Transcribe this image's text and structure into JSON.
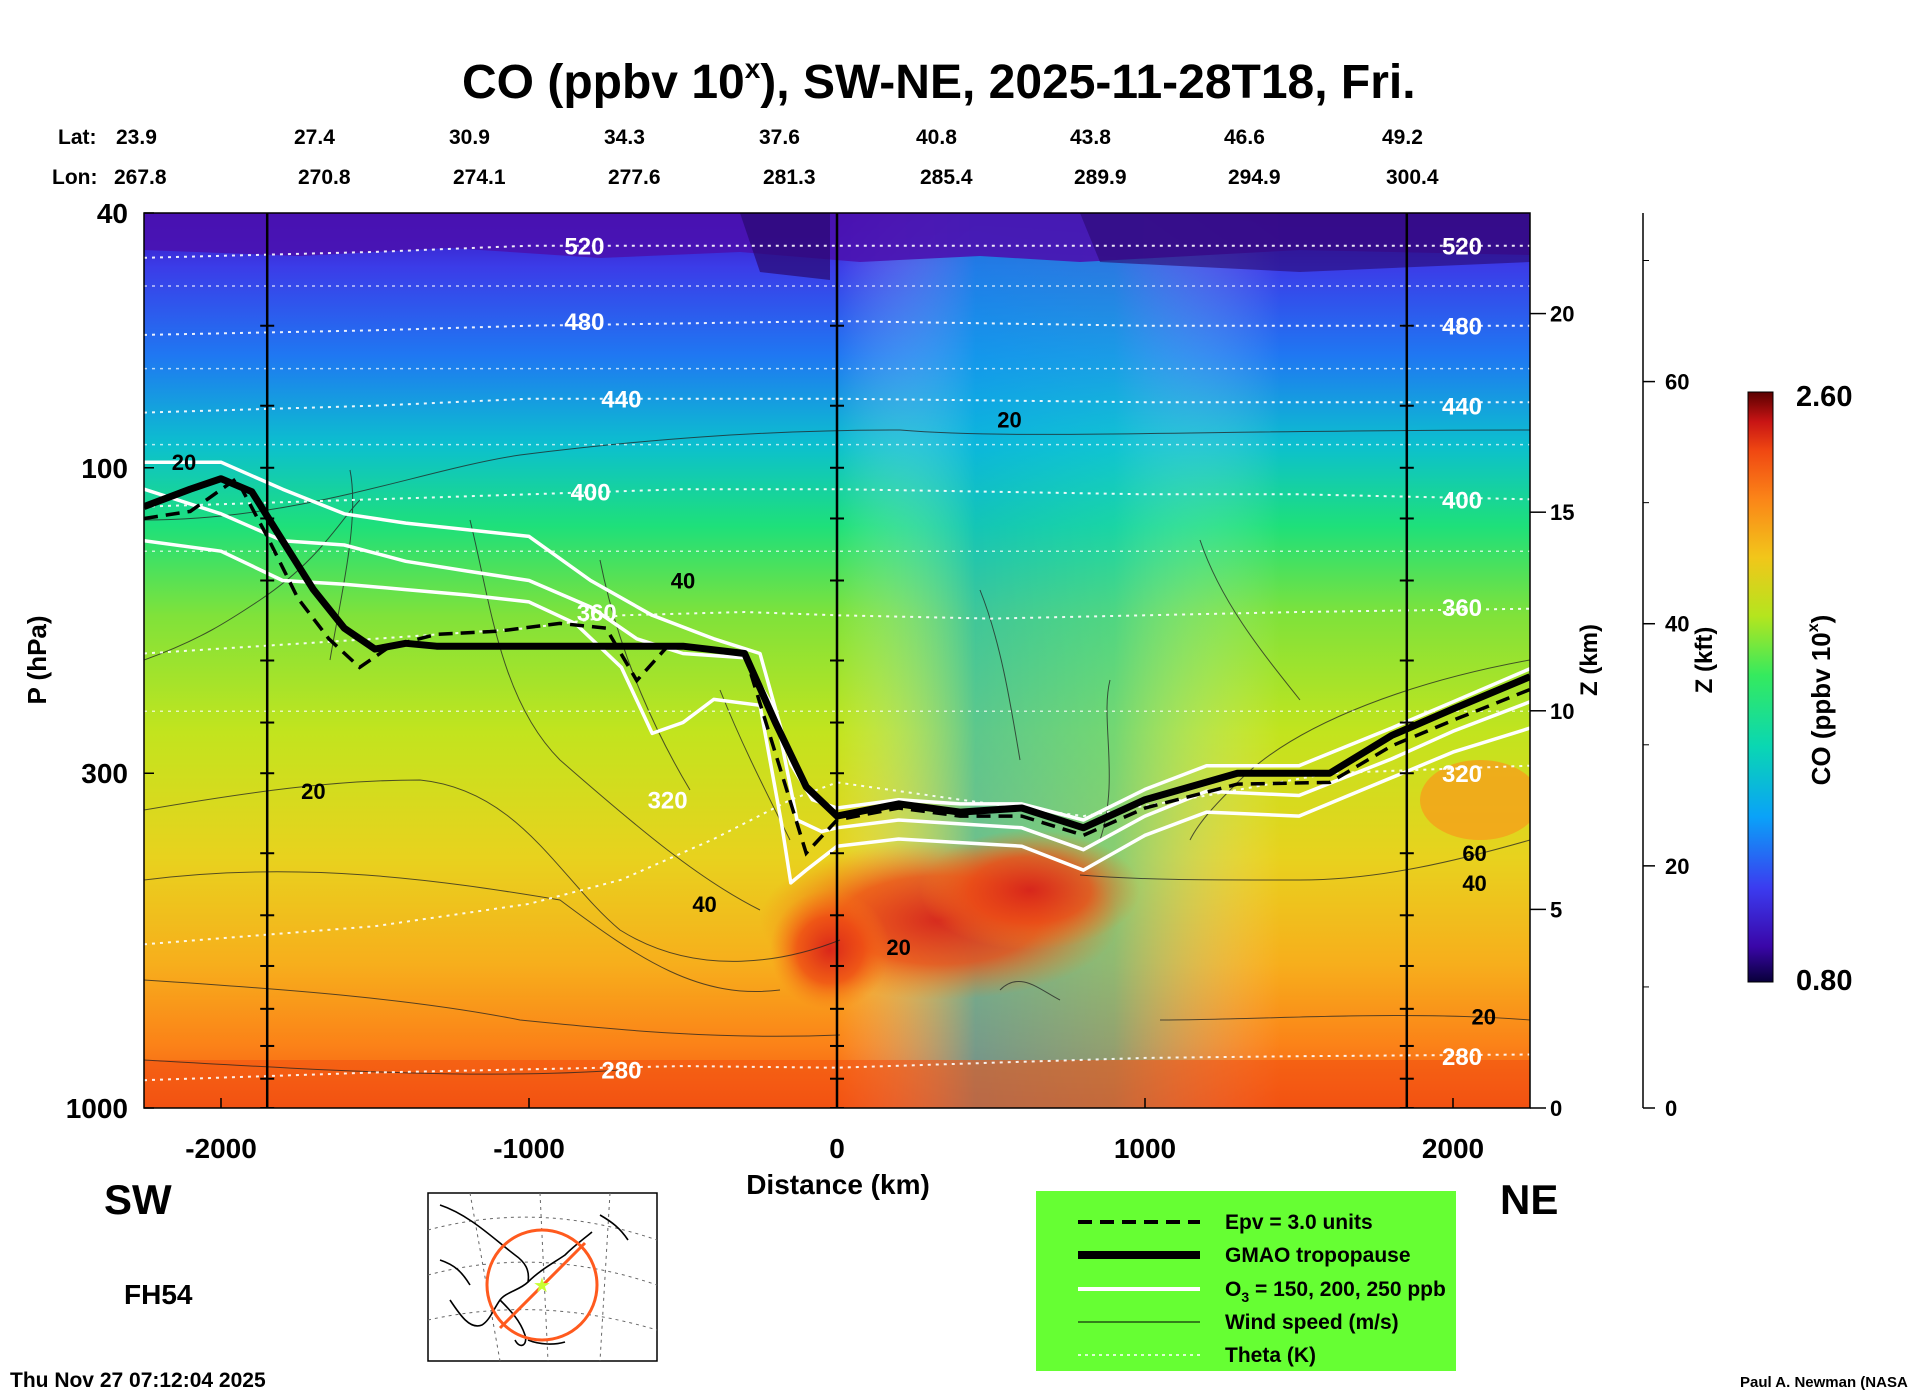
{
  "title": {
    "main": "CO (ppbv 10",
    "sup": "x",
    "rest": "), SW-NE, 2025-11-28T18, Fri."
  },
  "coords": {
    "lat_label": "Lat:",
    "lon_label": "Lon:",
    "lat": [
      "23.9",
      "27.4",
      "30.9",
      "34.3",
      "37.6",
      "40.8",
      "43.8",
      "46.6",
      "49.2"
    ],
    "lon": [
      "267.8",
      "270.8",
      "274.1",
      "277.6",
      "281.3",
      "285.4",
      "289.9",
      "294.9",
      "300.4"
    ]
  },
  "labels": {
    "sw": "SW",
    "ne": "NE",
    "fh": "FH54",
    "timestamp": "Thu Nov 27 07:12:04 2025",
    "credit": "Paul A. Newman (NASA"
  },
  "colors": {
    "legend_bg": "#66ff33",
    "map_orange": "#ff5a1e",
    "map_star": "#c8ff33"
  },
  "legend": [
    {
      "style": "dashed",
      "label": "Epv = 3.0 units"
    },
    {
      "style": "thick",
      "label": "GMAO tropopause"
    },
    {
      "style": "white",
      "label": "O",
      "sub": "3",
      "rest": " = 150, 200, 250 ppb"
    },
    {
      "style": "thin",
      "label": "Wind speed (m/s)"
    },
    {
      "style": "dotted",
      "label": "Theta (K)"
    }
  ],
  "chart_data": {
    "type": "heatmap",
    "title": "CO (ppbv 10^x), SW-NE, 2025-11-28T18, Fri.",
    "xlabel": "Distance (km)",
    "ylabel": "P (hPa)",
    "z_km_label": "Z (km)",
    "z_kft_label": "Z (kft)",
    "colorbar_label": "CO (ppbv 10",
    "colorbar_label_sup": "x",
    "colorbar_label_end": ")",
    "colorbar_range": [
      0.8,
      2.6
    ],
    "colorbar_tick_labels": [
      "2.60",
      "0.80"
    ],
    "xlim": [
      -2250,
      2250
    ],
    "ylim_hpa": [
      1000,
      40
    ],
    "x_ticks": [
      {
        "v": -2000,
        "label": "-2000"
      },
      {
        "v": -1000,
        "label": "-1000"
      },
      {
        "v": 0,
        "label": "0"
      },
      {
        "v": 1000,
        "label": "1000"
      },
      {
        "v": 2000,
        "label": "2000"
      }
    ],
    "y_ticks": [
      {
        "p": 40,
        "label": "40"
      },
      {
        "p": 100,
        "label": "100"
      },
      {
        "p": 300,
        "label": "300"
      },
      {
        "p": 1000,
        "label": "1000"
      }
    ],
    "z_km_ticks": [
      {
        "z": 0,
        "label": "0"
      },
      {
        "z": 5,
        "label": "5"
      },
      {
        "z": 10,
        "label": "10"
      },
      {
        "z": 15,
        "label": "15"
      },
      {
        "z": 20,
        "label": "20"
      }
    ],
    "z_kft_ticks": [
      {
        "z": 0,
        "label": "0"
      },
      {
        "z": 20,
        "label": "20"
      },
      {
        "z": 40,
        "label": "40"
      },
      {
        "z": 60,
        "label": "60"
      }
    ],
    "vertical_lines_km": [
      -1850,
      0,
      1850
    ],
    "tropopause": [
      [
        -2250,
        115
      ],
      [
        -2100,
        108
      ],
      [
        -2000,
        104
      ],
      [
        -1900,
        109
      ],
      [
        -1800,
        130
      ],
      [
        -1700,
        155
      ],
      [
        -1600,
        178
      ],
      [
        -1500,
        192
      ],
      [
        -1400,
        188
      ],
      [
        -1300,
        190
      ],
      [
        -1000,
        190
      ],
      [
        -700,
        190
      ],
      [
        -500,
        190
      ],
      [
        -300,
        195
      ],
      [
        -200,
        250
      ],
      [
        -100,
        315
      ],
      [
        0,
        350
      ],
      [
        200,
        335
      ],
      [
        400,
        345
      ],
      [
        600,
        340
      ],
      [
        800,
        365
      ],
      [
        1000,
        330
      ],
      [
        1300,
        300
      ],
      [
        1600,
        300
      ],
      [
        1800,
        262
      ],
      [
        2000,
        238
      ],
      [
        2250,
        212
      ]
    ],
    "epv": [
      [
        -2250,
        120
      ],
      [
        -2100,
        117
      ],
      [
        -1950,
        104
      ],
      [
        -1850,
        128
      ],
      [
        -1750,
        160
      ],
      [
        -1650,
        185
      ],
      [
        -1550,
        205
      ],
      [
        -1450,
        190
      ],
      [
        -1300,
        182
      ],
      [
        -1100,
        180
      ],
      [
        -900,
        175
      ],
      [
        -750,
        178
      ],
      [
        -650,
        215
      ],
      [
        -550,
        190
      ],
      [
        -300,
        195
      ],
      [
        -180,
        300
      ],
      [
        -100,
        400
      ],
      [
        0,
        355
      ],
      [
        200,
        340
      ],
      [
        400,
        350
      ],
      [
        600,
        350
      ],
      [
        800,
        375
      ],
      [
        1000,
        340
      ],
      [
        1300,
        312
      ],
      [
        1600,
        310
      ],
      [
        1800,
        272
      ],
      [
        2000,
        248
      ],
      [
        2250,
        222
      ]
    ],
    "ozone_contours": [
      [
        [
          -2250,
          98
        ],
        [
          -2000,
          98
        ],
        [
          -1800,
          108
        ],
        [
          -1600,
          118
        ],
        [
          -1400,
          122
        ],
        [
          -1200,
          125
        ],
        [
          -1000,
          128
        ],
        [
          -800,
          150
        ],
        [
          -600,
          170
        ],
        [
          -400,
          185
        ],
        [
          -250,
          195
        ],
        [
          -150,
          290
        ],
        [
          -80,
          330
        ],
        [
          0,
          340
        ],
        [
          200,
          330
        ],
        [
          400,
          335
        ],
        [
          600,
          335
        ],
        [
          800,
          355
        ],
        [
          1000,
          318
        ],
        [
          1200,
          292
        ],
        [
          1500,
          292
        ],
        [
          1800,
          255
        ],
        [
          2000,
          232
        ],
        [
          2250,
          206
        ]
      ],
      [
        [
          -2250,
          108
        ],
        [
          -2000,
          118
        ],
        [
          -1800,
          130
        ],
        [
          -1600,
          132
        ],
        [
          -1400,
          140
        ],
        [
          -1200,
          145
        ],
        [
          -1000,
          150
        ],
        [
          -800,
          165
        ],
        [
          -650,
          185
        ],
        [
          -500,
          195
        ],
        [
          -300,
          198
        ],
        [
          -200,
          240
        ],
        [
          -130,
          355
        ],
        [
          -50,
          370
        ],
        [
          0,
          365
        ],
        [
          200,
          355
        ],
        [
          400,
          360
        ],
        [
          600,
          365
        ],
        [
          800,
          395
        ],
        [
          1000,
          350
        ],
        [
          1200,
          320
        ],
        [
          1500,
          325
        ],
        [
          1800,
          285
        ],
        [
          2000,
          258
        ],
        [
          2250,
          232
        ]
      ],
      [
        [
          -2250,
          130
        ],
        [
          -2000,
          135
        ],
        [
          -1800,
          150
        ],
        [
          -1600,
          152
        ],
        [
          -1400,
          155
        ],
        [
          -1200,
          158
        ],
        [
          -1000,
          162
        ],
        [
          -850,
          175
        ],
        [
          -700,
          205
        ],
        [
          -600,
          260
        ],
        [
          -500,
          250
        ],
        [
          -400,
          230
        ],
        [
          -250,
          235
        ],
        [
          -180,
          360
        ],
        [
          -150,
          445
        ],
        [
          -100,
          425
        ],
        [
          0,
          390
        ],
        [
          200,
          380
        ],
        [
          400,
          385
        ],
        [
          600,
          390
        ],
        [
          800,
          425
        ],
        [
          1000,
          375
        ],
        [
          1200,
          345
        ],
        [
          1500,
          350
        ],
        [
          1800,
          305
        ],
        [
          2000,
          278
        ],
        [
          2250,
          255
        ]
      ]
    ],
    "theta_levels": [
      {
        "K": "280",
        "pts": [
          [
            -2250,
            905
          ],
          [
            -1500,
            880
          ],
          [
            -1000,
            870
          ],
          [
            -500,
            860
          ],
          [
            0,
            865
          ],
          [
            500,
            850
          ],
          [
            1000,
            835
          ],
          [
            1500,
            830
          ],
          [
            2250,
            825
          ]
        ],
        "lx": -700,
        "lp": 870
      },
      {
        "K": "320",
        "pts": [
          [
            -2250,
            555
          ],
          [
            -1500,
            520
          ],
          [
            -1000,
            480
          ],
          [
            -700,
            440
          ],
          [
            -400,
            380
          ],
          [
            -150,
            330
          ],
          [
            0,
            310
          ],
          [
            400,
            330
          ],
          [
            800,
            350
          ],
          [
            1200,
            325
          ],
          [
            1600,
            300
          ],
          [
            2000,
            295
          ],
          [
            2250,
            292
          ]
        ],
        "lx": -550,
        "lp": 330
      },
      {
        "K": "360",
        "pts": [
          [
            -2250,
            195
          ],
          [
            -1500,
            185
          ],
          [
            -1000,
            178
          ],
          [
            -700,
            170
          ],
          [
            -300,
            168
          ],
          [
            0,
            170
          ],
          [
            500,
            172
          ],
          [
            1000,
            170
          ],
          [
            1500,
            168
          ],
          [
            2250,
            166
          ]
        ],
        "lx": -780,
        "lp": 168
      },
      {
        "K": "400",
        "pts": [
          [
            -2250,
            115
          ],
          [
            -1500,
            112
          ],
          [
            -1000,
            110
          ],
          [
            -500,
            108
          ],
          [
            0,
            108
          ],
          [
            500,
            109
          ],
          [
            1000,
            110
          ],
          [
            1500,
            110
          ],
          [
            2250,
            112
          ]
        ],
        "lx": -800,
        "lp": 109
      },
      {
        "K": "440",
        "pts": [
          [
            -2250,
            82
          ],
          [
            -1500,
            80
          ],
          [
            -1000,
            78
          ],
          [
            0,
            78
          ],
          [
            1000,
            79
          ],
          [
            2250,
            79
          ]
        ],
        "lx": -700,
        "lp": 78
      },
      {
        "K": "480",
        "pts": [
          [
            -2250,
            62
          ],
          [
            -1500,
            61
          ],
          [
            -1000,
            60
          ],
          [
            0,
            59
          ],
          [
            1000,
            60
          ],
          [
            2250,
            60
          ]
        ],
        "lx": -820,
        "lp": 59
      },
      {
        "K": "520",
        "pts": [
          [
            -2250,
            47
          ],
          [
            -1500,
            46
          ],
          [
            -1000,
            45
          ],
          [
            0,
            45
          ],
          [
            1000,
            45
          ],
          [
            2250,
            45
          ]
        ],
        "lx": -820,
        "lp": 45
      }
    ],
    "wind_labels": [
      {
        "text": "20",
        "x": -2120,
        "p": 98
      },
      {
        "text": "20",
        "x": 560,
        "p": 84
      },
      {
        "text": "40",
        "x": -500,
        "p": 150
      },
      {
        "text": "20",
        "x": -1700,
        "p": 320
      },
      {
        "text": "40",
        "x": -430,
        "p": 480
      },
      {
        "text": "20",
        "x": 200,
        "p": 560
      },
      {
        "text": "60",
        "x": 2070,
        "p": 400
      },
      {
        "text": "40",
        "x": 2070,
        "p": 445
      },
      {
        "text": "20",
        "x": 2100,
        "p": 720
      }
    ],
    "theta_right_labels": [
      {
        "text": "520",
        "p": 45
      },
      {
        "text": "480",
        "p": 60
      },
      {
        "text": "440",
        "p": 80
      },
      {
        "text": "400",
        "p": 112
      },
      {
        "text": "360",
        "p": 165
      },
      {
        "text": "320",
        "p": 300
      },
      {
        "text": "280",
        "p": 830
      }
    ]
  }
}
